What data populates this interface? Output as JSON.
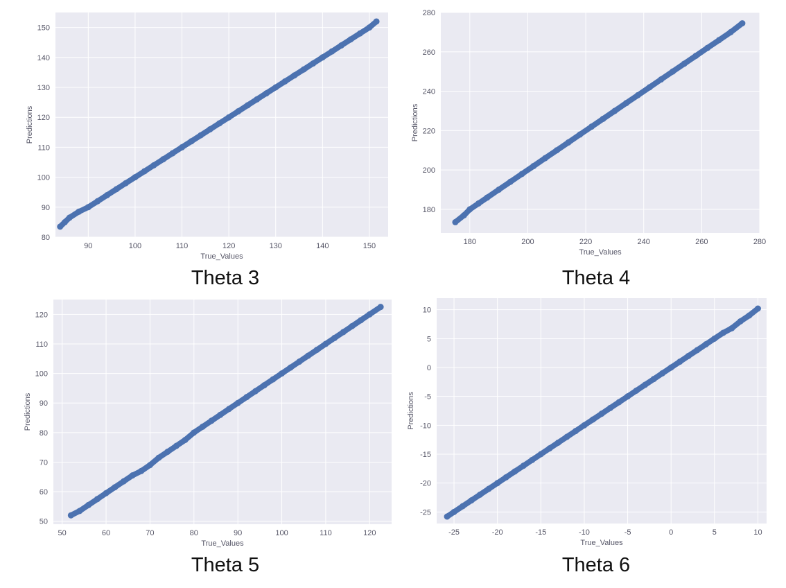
{
  "colors": {
    "point": "#4c72b0",
    "plot_background": "#eaeaf2",
    "grid": "#ffffff"
  },
  "chart_data": [
    {
      "type": "scatter",
      "caption": "Theta 3",
      "xlabel": "True_Values",
      "ylabel": "Predictions",
      "xlim": [
        83,
        154
      ],
      "ylim": [
        80,
        155
      ],
      "xticks": [
        90,
        100,
        110,
        120,
        130,
        140,
        150
      ],
      "yticks": [
        80,
        90,
        100,
        110,
        120,
        130,
        140,
        150
      ],
      "grid": true,
      "series": [
        {
          "x": [
            84,
            85,
            86,
            88,
            90,
            92,
            94,
            96,
            98,
            100,
            102,
            104,
            106,
            108,
            110,
            112,
            114,
            116,
            118,
            120,
            122,
            124,
            126,
            128,
            130,
            132,
            134,
            136,
            138,
            140,
            142,
            144,
            146,
            148,
            150,
            151.5
          ],
          "y": [
            83.5,
            85,
            86.5,
            88.5,
            90,
            92,
            94,
            96,
            98,
            100,
            102,
            104,
            106,
            108,
            110,
            112,
            114,
            116,
            118,
            120,
            122,
            124,
            126,
            128,
            130,
            132,
            134,
            136,
            138,
            140,
            142,
            144,
            146,
            148,
            150,
            152
          ]
        }
      ]
    },
    {
      "type": "scatter",
      "caption": "Theta 4",
      "xlabel": "True_Values",
      "ylabel": "Predictions",
      "xlim": [
        170,
        280
      ],
      "ylim": [
        168,
        280
      ],
      "xticks": [
        180,
        200,
        220,
        240,
        260,
        280
      ],
      "yticks": [
        180,
        200,
        220,
        240,
        260,
        280
      ],
      "grid": true,
      "series": [
        {
          "x": [
            175,
            178,
            180,
            183,
            186,
            190,
            194,
            198,
            202,
            206,
            210,
            214,
            218,
            222,
            226,
            230,
            234,
            238,
            242,
            246,
            250,
            254,
            258,
            262,
            266,
            270,
            274
          ],
          "y": [
            173.5,
            177,
            180,
            183,
            186,
            190,
            194,
            198,
            202,
            206,
            210,
            214,
            218,
            222,
            226,
            230,
            234,
            238,
            242,
            246,
            250,
            254,
            258,
            262,
            266,
            270,
            274.5
          ]
        }
      ]
    },
    {
      "type": "scatter",
      "caption": "Theta 5",
      "xlabel": "True_Values",
      "ylabel": "Predictions",
      "xlim": [
        48,
        125
      ],
      "ylim": [
        49,
        125
      ],
      "xticks": [
        50,
        60,
        70,
        80,
        90,
        100,
        110,
        120
      ],
      "yticks": [
        50,
        60,
        70,
        80,
        90,
        100,
        110,
        120
      ],
      "grid": true,
      "series": [
        {
          "x": [
            52,
            54,
            56,
            58,
            60,
            62,
            64,
            66,
            68,
            70,
            72,
            74,
            76,
            78,
            80,
            82,
            84,
            86,
            88,
            90,
            92,
            94,
            96,
            98,
            100,
            102,
            104,
            106,
            108,
            110,
            112,
            114,
            116,
            118,
            120,
            122.5
          ],
          "y": [
            52,
            53.5,
            55.5,
            57.5,
            59.5,
            61.5,
            63.5,
            65.5,
            67,
            69,
            71.5,
            73.5,
            75.5,
            77.5,
            80,
            82,
            84,
            86,
            88,
            90,
            92,
            94,
            96,
            98,
            100,
            102,
            104,
            106,
            108,
            110,
            112,
            114,
            116,
            118,
            120,
            122.5
          ]
        }
      ]
    },
    {
      "type": "scatter",
      "caption": "Theta 6",
      "xlabel": "True_Values",
      "ylabel": "Predictions",
      "xlim": [
        -27,
        11
      ],
      "ylim": [
        -27,
        12
      ],
      "xticks": [
        -25,
        -20,
        -15,
        -10,
        -5,
        0,
        5,
        10
      ],
      "yticks": [
        -25,
        -20,
        -15,
        -10,
        -5,
        0,
        5,
        10
      ],
      "grid": true,
      "series": [
        {
          "x": [
            -25.8,
            -25,
            -24,
            -23,
            -22,
            -21,
            -20,
            -19,
            -18,
            -17,
            -16,
            -15,
            -14,
            -13,
            -12,
            -11,
            -10,
            -9,
            -8,
            -7,
            -6,
            -5,
            -4,
            -3,
            -2,
            -1,
            0,
            1,
            2,
            3,
            4,
            5,
            6,
            7,
            8,
            9,
            10
          ],
          "y": [
            -25.8,
            -25,
            -24,
            -23,
            -22,
            -21,
            -20,
            -19,
            -18,
            -17,
            -16,
            -15,
            -14,
            -13,
            -12,
            -11,
            -10,
            -9,
            -8,
            -7,
            -6,
            -5,
            -4,
            -3,
            -2,
            -1,
            0,
            1,
            2,
            3,
            4,
            5,
            6,
            6.8,
            8,
            9,
            10.2
          ]
        }
      ]
    }
  ]
}
